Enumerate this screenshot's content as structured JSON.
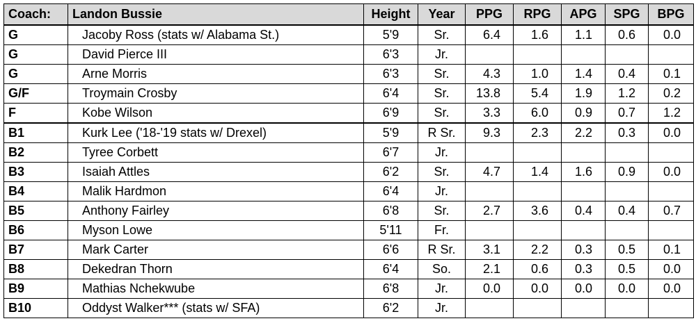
{
  "header": {
    "coach_label": "Coach:",
    "coach": "Landon Bussie",
    "columns": [
      "Height",
      "Year",
      "PPG",
      "RPG",
      "APG",
      "SPG",
      "BPG"
    ]
  },
  "rows": [
    {
      "pos": "G",
      "name": "Jacoby Ross (stats w/ Alabama St.)",
      "height": "5'9",
      "year": "Sr.",
      "stats": [
        "6.4",
        "1.6",
        "1.1",
        "0.6",
        "0.0"
      ]
    },
    {
      "pos": "G",
      "name": "David Pierce III",
      "height": "6'3",
      "year": "Jr."
    },
    {
      "pos": "G",
      "name": "Arne Morris",
      "height": "6'3",
      "year": "Sr.",
      "stats": [
        "4.3",
        "1.0",
        "1.4",
        "0.4",
        "0.1"
      ]
    },
    {
      "pos": "G/F",
      "name": "Troymain Crosby",
      "height": "6'4",
      "year": "Sr.",
      "stats": [
        "13.8",
        "5.4",
        "1.9",
        "1.2",
        "0.2"
      ]
    },
    {
      "pos": "F",
      "name": "Kobe Wilson",
      "height": "6'9",
      "year": "Sr.",
      "stats": [
        "3.3",
        "6.0",
        "0.9",
        "0.7",
        "1.2"
      ]
    },
    {
      "pos": "B1",
      "name": "Kurk Lee ('18-'19 stats w/ Drexel)",
      "height": "5'9",
      "year": "R Sr.",
      "stats": [
        "9.3",
        "2.3",
        "2.2",
        "0.3",
        "0.0"
      ]
    },
    {
      "pos": "B2",
      "name": "Tyree Corbett",
      "height": "6'7",
      "year": "Jr."
    },
    {
      "pos": "B3",
      "name": "Isaiah Attles",
      "height": "6'2",
      "year": "Sr.",
      "stats": [
        "4.7",
        "1.4",
        "1.6",
        "0.9",
        "0.0"
      ]
    },
    {
      "pos": "B4",
      "name": "Malik Hardmon",
      "height": "6'4",
      "year": "Jr."
    },
    {
      "pos": "B5",
      "name": "Anthony Fairley",
      "height": "6'8",
      "year": "Sr.",
      "stats": [
        "2.7",
        "3.6",
        "0.4",
        "0.4",
        "0.7"
      ]
    },
    {
      "pos": "B6",
      "name": "Myson Lowe",
      "height": "5'11",
      "year": "Fr."
    },
    {
      "pos": "B7",
      "name": "Mark Carter",
      "height": "6'6",
      "year": "R Sr.",
      "stats": [
        "3.1",
        "2.2",
        "0.3",
        "0.5",
        "0.1"
      ]
    },
    {
      "pos": "B8",
      "name": "Dekedran Thorn",
      "height": "6'4",
      "year": "So.",
      "stats": [
        "2.1",
        "0.6",
        "0.3",
        "0.5",
        "0.0"
      ]
    },
    {
      "pos": "B9",
      "name": "Mathias Nchekwube",
      "height": "6'8",
      "year": "Jr.",
      "stats": [
        "0.0",
        "0.0",
        "0.0",
        "0.0",
        "0.0"
      ]
    },
    {
      "pos": "B10",
      "name": "Oddyst Walker*** (stats w/ SFA)",
      "height": "6'2",
      "year": "Jr."
    }
  ]
}
